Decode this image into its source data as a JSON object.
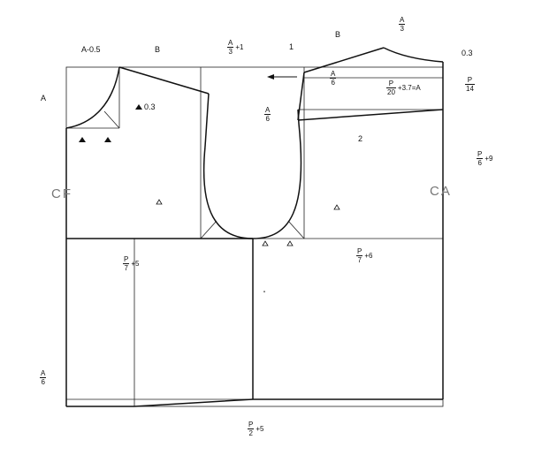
{
  "labels": {
    "a_minus_05": "A-0.5",
    "b_front": "B",
    "one": "1",
    "b_back": "B",
    "offset_03_top": "0.3",
    "a_side": "A",
    "offset_03_neck": "0.3",
    "two": "2",
    "cf": "CF",
    "ca": "CA"
  },
  "fractions": {
    "a3_top": {
      "num": "A",
      "den": "3",
      "suffix": ""
    },
    "a3_plus1": {
      "num": "A",
      "den": "3",
      "suffix": "+1"
    },
    "a6_arrow": {
      "num": "A",
      "den": "6",
      "suffix": ""
    },
    "p20": {
      "num": "P",
      "den": "20",
      "suffix": "+3.7=A"
    },
    "p14": {
      "num": "P",
      "den": "14",
      "suffix": ""
    },
    "a6_center": {
      "num": "A",
      "den": "6",
      "suffix": ""
    },
    "p6_plus9": {
      "num": "P",
      "den": "6",
      "suffix": "+9"
    },
    "p7_plus5": {
      "num": "P",
      "den": "7",
      "suffix": "+5"
    },
    "p7_plus6": {
      "num": "P",
      "den": "7",
      "suffix": "+6"
    },
    "a6_left": {
      "num": "A",
      "den": "6",
      "suffix": ""
    },
    "p2_plus5": {
      "num": "P",
      "den": "2",
      "suffix": "+5"
    }
  }
}
